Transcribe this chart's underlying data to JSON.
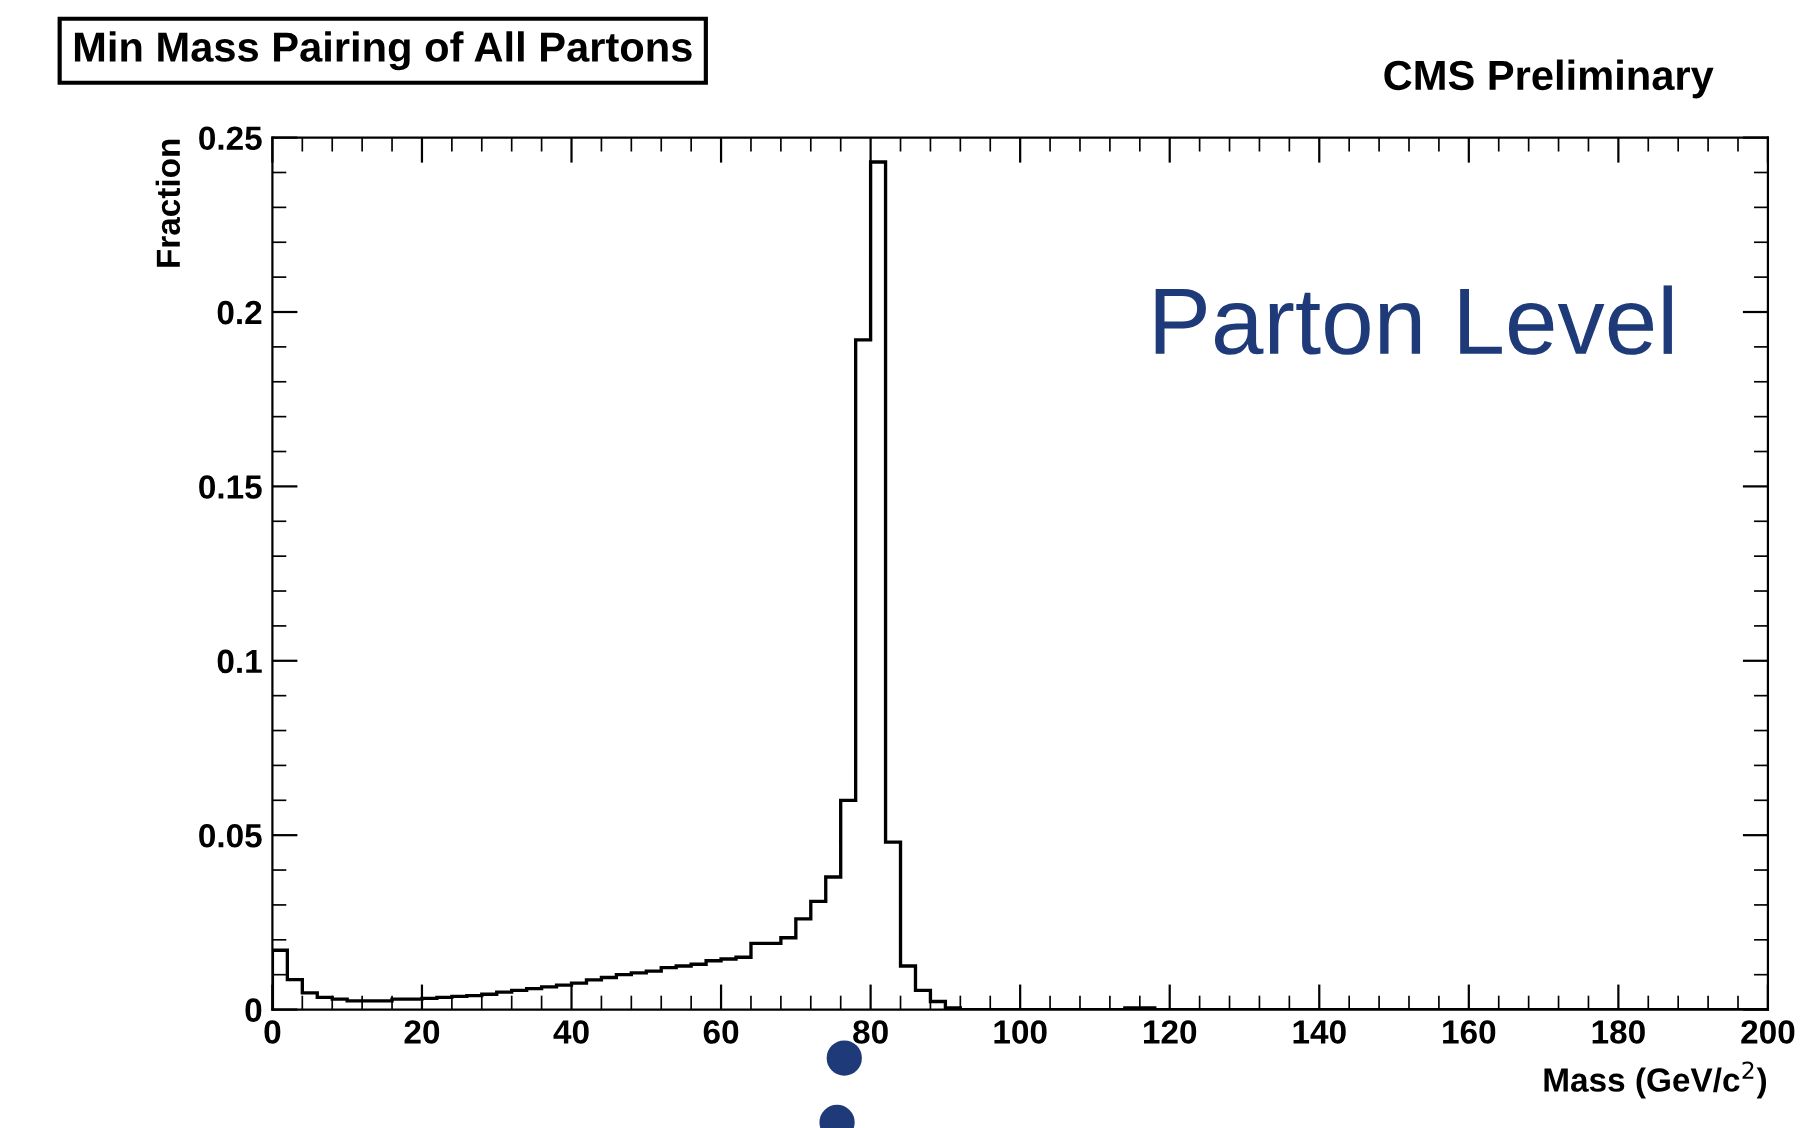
{
  "chart_data": {
    "type": "histogram",
    "title": "Min Mass Pairing of All Partons",
    "subtitle": "CMS Preliminary",
    "xlabel": "Mass (GeV/c$^{2}$)",
    "ylabel": "Fraction",
    "annotations": [
      "Parton Level"
    ],
    "bins": [
      0,
      2,
      4,
      6,
      8,
      10,
      12,
      14,
      16,
      18,
      20,
      22,
      24,
      26,
      28,
      30,
      32,
      34,
      36,
      38,
      40,
      42,
      44,
      46,
      48,
      50,
      52,
      54,
      56,
      58,
      60,
      62,
      64,
      66,
      68,
      70,
      72,
      74,
      76,
      78,
      80,
      82,
      84,
      86,
      88,
      90,
      92,
      94,
      96,
      98,
      100,
      102,
      104,
      106,
      108,
      110,
      112,
      114,
      116,
      118,
      120,
      122,
      124,
      126,
      128,
      130,
      132,
      134,
      136,
      138,
      140,
      142,
      144,
      146,
      148,
      150,
      152,
      154,
      156,
      158,
      160,
      162,
      164,
      166,
      168,
      170,
      172,
      174,
      176,
      178,
      180,
      182,
      184,
      186,
      188,
      190,
      192,
      194,
      196,
      198,
      200
    ],
    "values": [
      0.017,
      0.0086,
      0.0048,
      0.0035,
      0.003,
      0.0025,
      0.0025,
      0.0025,
      0.003,
      0.003,
      0.0032,
      0.0035,
      0.0038,
      0.004,
      0.0044,
      0.005,
      0.0055,
      0.006,
      0.0065,
      0.007,
      0.0076,
      0.0085,
      0.0092,
      0.01,
      0.0105,
      0.011,
      0.012,
      0.0125,
      0.013,
      0.014,
      0.0145,
      0.015,
      0.019,
      0.019,
      0.0206,
      0.026,
      0.031,
      0.038,
      0.06,
      0.192,
      0.243,
      0.048,
      0.0125,
      0.0055,
      0.0023,
      0.0005,
      0,
      0,
      0,
      0,
      0,
      0,
      0,
      0,
      0,
      0,
      0,
      0.0005,
      0.0005,
      0,
      0,
      0,
      0,
      0,
      0,
      0,
      0,
      0,
      0,
      0,
      0,
      0,
      0,
      0,
      0,
      0,
      0,
      0,
      0,
      0,
      0,
      0,
      0,
      0,
      0,
      0,
      0,
      0,
      0,
      0,
      0,
      0,
      0,
      0,
      0,
      0,
      0,
      0,
      0,
      0
    ],
    "color": "#000000",
    "xlim": [
      0,
      200
    ],
    "xticks": [
      0,
      20,
      40,
      60,
      80,
      100,
      120,
      140,
      160,
      180,
      200
    ],
    "ylim": [
      0,
      0.25
    ],
    "yticks": [
      0,
      0.05,
      0.1,
      0.15,
      0.2,
      0.25
    ],
    "grid": false
  }
}
